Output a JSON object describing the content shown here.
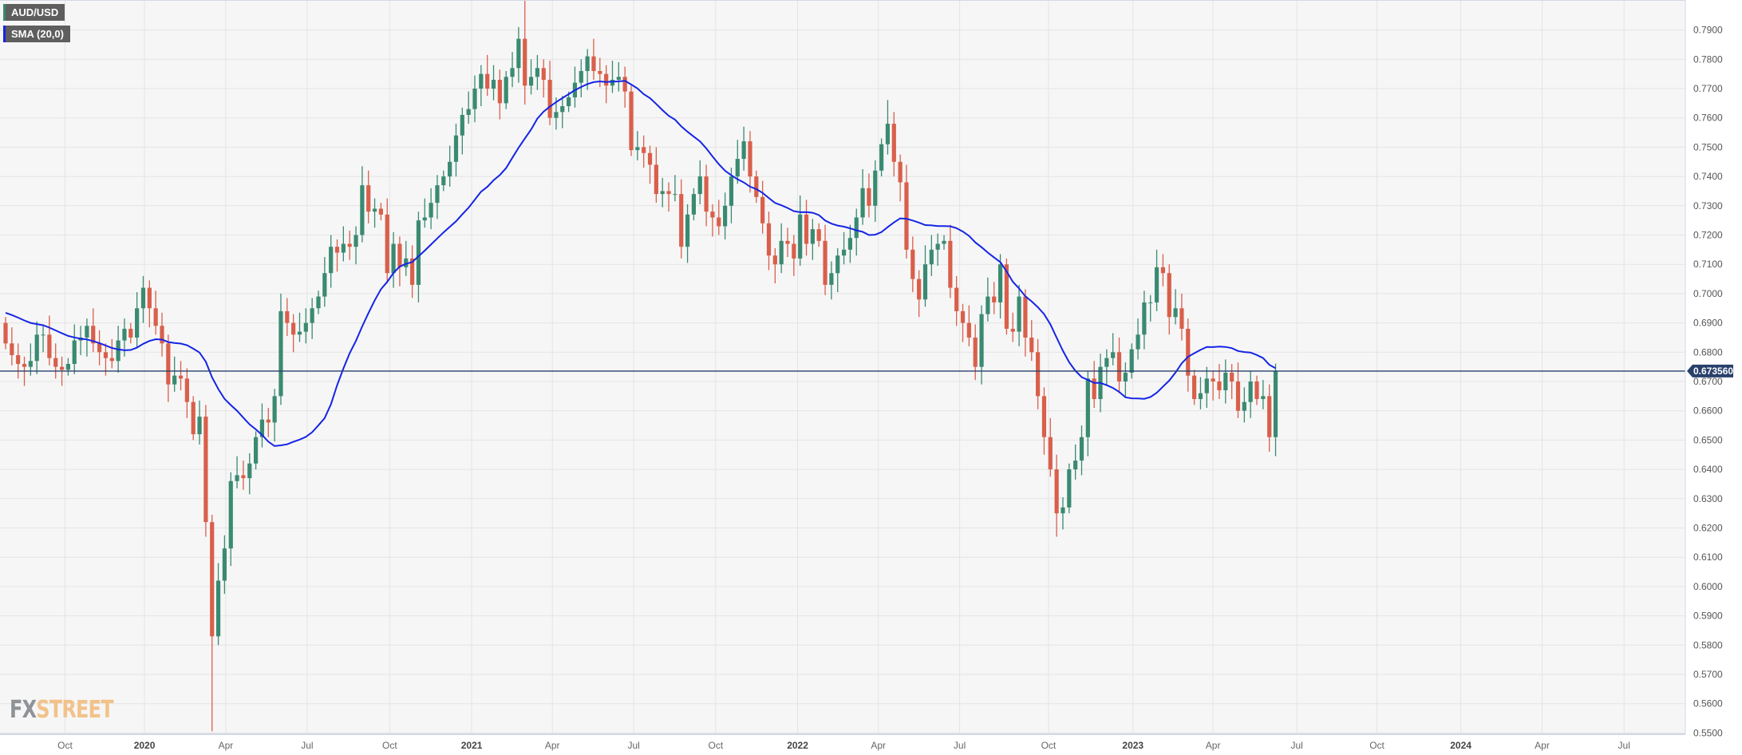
{
  "legend": {
    "symbol": "AUD/USD",
    "indicator": "SMA (20,0)"
  },
  "logo": {
    "fx": "FX",
    "street": "STREET"
  },
  "colors": {
    "up": "#3a8a72",
    "down": "#d95f4b",
    "sma": "#1524e6",
    "price_line": "#28406b",
    "background": "#f6f6f6",
    "grid": "#e4e4e4"
  },
  "chart_data": {
    "type": "candlestick",
    "title": "AUD/USD",
    "timeframe": "weekly",
    "first_week": "2019-07-29",
    "ylim": [
      0.55,
      0.79
    ],
    "y_ticks": [
      "0.7900",
      "0.7800",
      "0.7700",
      "0.7600",
      "0.7500",
      "0.7400",
      "0.7300",
      "0.7200",
      "0.7100",
      "0.7000",
      "0.6900",
      "0.6800",
      "0.6700",
      "0.6600",
      "0.6500",
      "0.6400",
      "0.6300",
      "0.6200",
      "0.6100",
      "0.6000",
      "0.5900",
      "0.5800",
      "0.5700",
      "0.5600",
      "0.5500"
    ],
    "x_ticks": [
      {
        "label": "Oct",
        "bold": false,
        "week": 9.5
      },
      {
        "label": "2020",
        "bold": true,
        "week": 22.2
      },
      {
        "label": "Apr",
        "bold": false,
        "week": 35.2
      },
      {
        "label": "Jul",
        "bold": false,
        "week": 48.2
      },
      {
        "label": "Oct",
        "bold": false,
        "week": 61.4
      },
      {
        "label": "2021",
        "bold": true,
        "week": 74.5
      },
      {
        "label": "Apr",
        "bold": false,
        "week": 87.4
      },
      {
        "label": "Jul",
        "bold": false,
        "week": 100.4
      },
      {
        "label": "Oct",
        "bold": false,
        "week": 113.5
      },
      {
        "label": "2022",
        "bold": true,
        "week": 126.6
      },
      {
        "label": "Apr",
        "bold": false,
        "week": 139.5
      },
      {
        "label": "Jul",
        "bold": false,
        "week": 152.5
      },
      {
        "label": "Oct",
        "bold": false,
        "week": 166.7
      },
      {
        "label": "2023",
        "bold": true,
        "week": 180.2
      },
      {
        "label": "Apr",
        "bold": false,
        "week": 193
      },
      {
        "label": "Jul",
        "bold": false,
        "week": 206.4
      },
      {
        "label": "Oct",
        "bold": false,
        "week": 219.2
      },
      {
        "label": "2024",
        "bold": true,
        "week": 232.6
      },
      {
        "label": "Apr",
        "bold": false,
        "week": 245.6
      },
      {
        "label": "Jul",
        "bold": false,
        "week": 258.7
      }
    ],
    "first_open": 0.69,
    "closes": [
      0.683,
      0.679,
      0.676,
      0.675,
      0.677,
      0.686,
      0.686,
      0.678,
      0.675,
      0.674,
      0.676,
      0.684,
      0.685,
      0.689,
      0.683,
      0.68,
      0.678,
      0.677,
      0.684,
      0.688,
      0.685,
      0.695,
      0.702,
      0.695,
      0.689,
      0.683,
      0.669,
      0.672,
      0.671,
      0.663,
      0.652,
      0.658,
      0.622,
      0.583,
      0.602,
      0.613,
      0.636,
      0.638,
      0.637,
      0.642,
      0.651,
      0.657,
      0.656,
      0.665,
      0.694,
      0.69,
      0.686,
      0.687,
      0.69,
      0.695,
      0.699,
      0.707,
      0.716,
      0.714,
      0.717,
      0.716,
      0.72,
      0.737,
      0.728,
      0.729,
      0.727,
      0.707,
      0.717,
      0.709,
      0.712,
      0.703,
      0.725,
      0.726,
      0.731,
      0.737,
      0.74,
      0.745,
      0.754,
      0.761,
      0.763,
      0.77,
      0.775,
      0.77,
      0.773,
      0.765,
      0.774,
      0.777,
      0.787,
      0.771,
      0.774,
      0.777,
      0.773,
      0.76,
      0.762,
      0.764,
      0.767,
      0.772,
      0.776,
      0.781,
      0.776,
      0.775,
      0.771,
      0.773,
      0.774,
      0.769,
      0.749,
      0.75,
      0.748,
      0.744,
      0.734,
      0.735,
      0.734,
      0.734,
      0.716,
      0.727,
      0.734,
      0.74,
      0.728,
      0.726,
      0.723,
      0.73,
      0.74,
      0.746,
      0.752,
      0.74,
      0.733,
      0.724,
      0.713,
      0.71,
      0.718,
      0.717,
      0.712,
      0.727,
      0.717,
      0.722,
      0.718,
      0.703,
      0.707,
      0.713,
      0.715,
      0.719,
      0.726,
      0.736,
      0.73,
      0.742,
      0.751,
      0.758,
      0.745,
      0.738,
      0.715,
      0.705,
      0.698,
      0.71,
      0.715,
      0.717,
      0.718,
      0.702,
      0.694,
      0.69,
      0.685,
      0.675,
      0.693,
      0.699,
      0.697,
      0.71,
      0.688,
      0.687,
      0.699,
      0.685,
      0.68,
      0.665,
      0.651,
      0.64,
      0.625,
      0.627,
      0.64,
      0.643,
      0.651,
      0.671,
      0.664,
      0.675,
      0.678,
      0.68,
      0.67,
      0.673,
      0.681,
      0.686,
      0.697,
      0.697,
      0.709,
      0.707,
      0.692,
      0.695,
      0.688,
      0.672,
      0.664,
      0.666,
      0.671,
      0.67,
      0.667,
      0.673,
      0.67,
      0.66,
      0.663,
      0.67,
      0.664,
      0.665,
      0.651,
      0.6736
    ],
    "wick_size": 0.005,
    "notable_wicks": [
      {
        "week": 33,
        "low": 0.5506
      },
      {
        "week": 83,
        "high": 0.8007
      },
      {
        "week": 141,
        "high": 0.7661
      },
      {
        "week": 168,
        "low": 0.617
      }
    ],
    "sma_period": 20,
    "last_price": "0.673560",
    "last_price_value": 0.67356
  }
}
